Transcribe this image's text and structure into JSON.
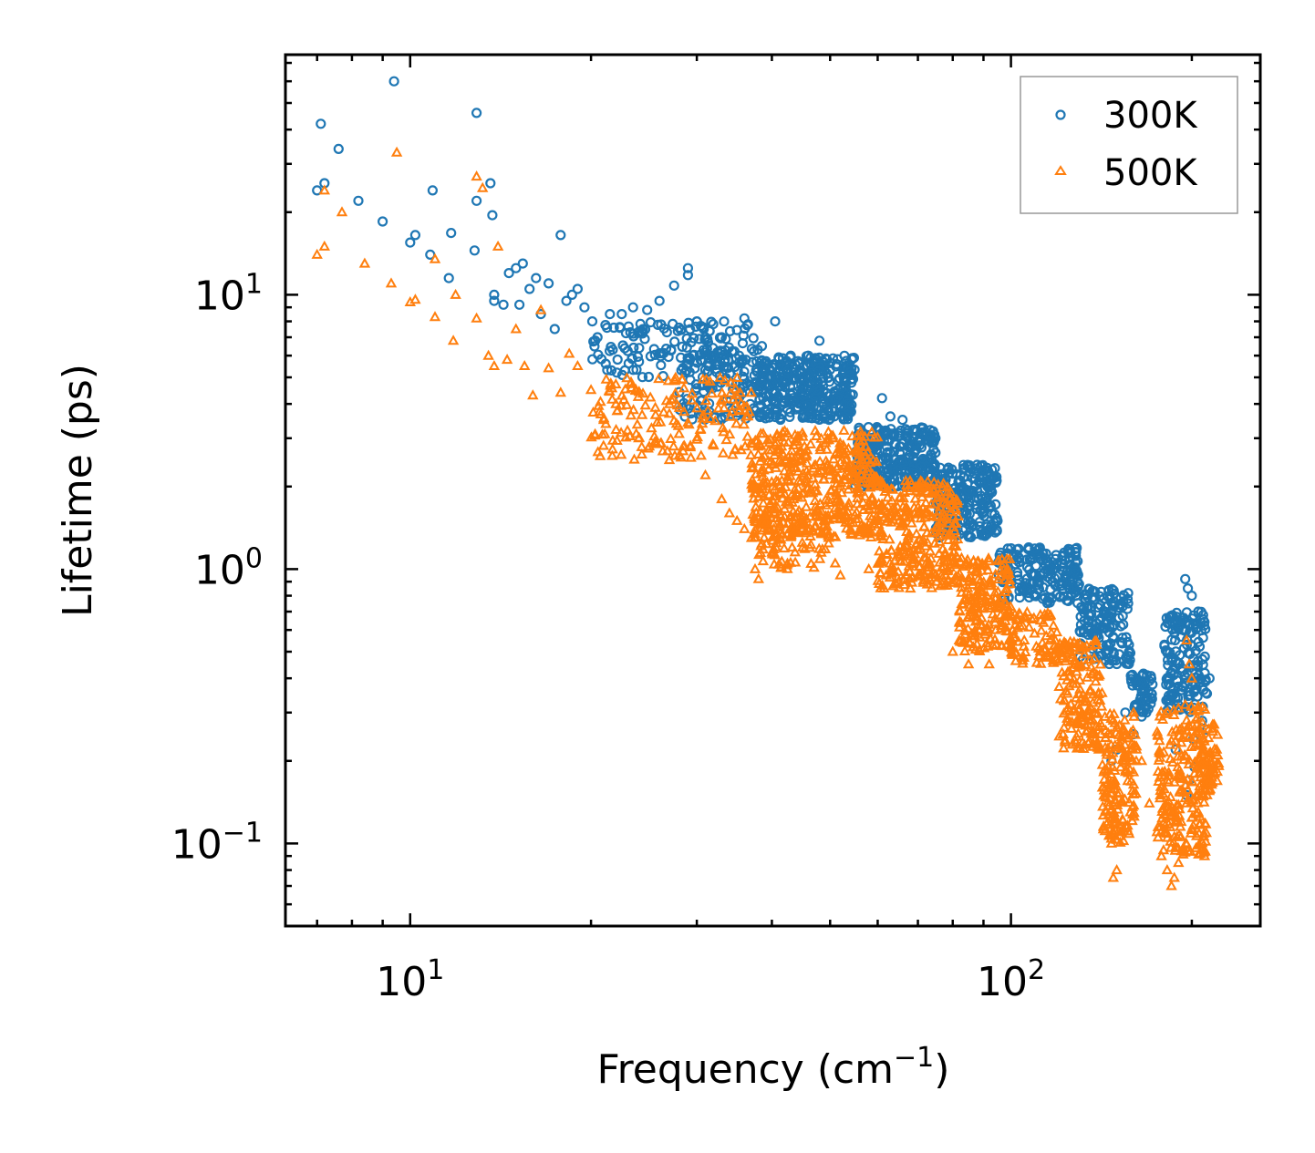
{
  "chart_data": {
    "type": "scatter",
    "title": "",
    "xlabel": "Frequency (cm",
    "xlabel_sup": "−1",
    "xlabel_end": ")",
    "ylabel": "Lifetime (ps)",
    "xscale": "log",
    "yscale": "log",
    "xlim": [
      6.2,
      260
    ],
    "ylim": [
      0.05,
      75
    ],
    "x_ticks": [
      {
        "value": 10,
        "base": "10",
        "exp": "1"
      },
      {
        "value": 100,
        "base": "10",
        "exp": "2"
      }
    ],
    "y_ticks": [
      {
        "value": 0.1,
        "base": "10",
        "exp": "−1"
      },
      {
        "value": 1,
        "base": "10",
        "exp": "0"
      },
      {
        "value": 10,
        "base": "10",
        "exp": "1"
      }
    ],
    "legend": {
      "position": "top-right"
    },
    "series": [
      {
        "name": "300K",
        "marker": "circle",
        "color": "#1f77b4",
        "points": [
          [
            7.0,
            24
          ],
          [
            7.1,
            42
          ],
          [
            7.2,
            25.5
          ],
          [
            7.6,
            34
          ],
          [
            8.2,
            22
          ],
          [
            9.0,
            18.5
          ],
          [
            9.4,
            60
          ],
          [
            10.0,
            15.5
          ],
          [
            10.2,
            16.5
          ],
          [
            10.8,
            14
          ],
          [
            10.9,
            24
          ],
          [
            11.6,
            11.5
          ],
          [
            11.7,
            16.8
          ],
          [
            12.8,
            14.5
          ],
          [
            12.9,
            22
          ],
          [
            12.9,
            46
          ],
          [
            13.6,
            25.5
          ],
          [
            13.7,
            19.5
          ],
          [
            13.8,
            10
          ],
          [
            13.8,
            9.5
          ],
          [
            14.3,
            9.2
          ],
          [
            14.6,
            12
          ],
          [
            15.0,
            12.5
          ],
          [
            15.2,
            9.2
          ],
          [
            15.4,
            13
          ],
          [
            15.8,
            10.5
          ],
          [
            16.2,
            11.5
          ],
          [
            16.5,
            8.5
          ],
          [
            17.0,
            11
          ],
          [
            17.4,
            7.5
          ],
          [
            17.8,
            16.5
          ],
          [
            18.2,
            9.5
          ],
          [
            18.6,
            10
          ],
          [
            19.0,
            10.5
          ],
          [
            19.5,
            9
          ],
          [
            20.1,
            8
          ],
          [
            20.5,
            7
          ],
          [
            21.5,
            8.5
          ],
          [
            22.5,
            8.5
          ],
          [
            23.5,
            9
          ],
          [
            24.8,
            8.8
          ],
          [
            26,
            9.5
          ],
          [
            27.5,
            10.8
          ],
          [
            29,
            12.5
          ],
          [
            29,
            11.8
          ],
          [
            30,
            8
          ],
          [
            31,
            7
          ],
          [
            33,
            7
          ],
          [
            36,
            8.2
          ],
          [
            36.5,
            7.8
          ],
          [
            38.5,
            6.5
          ],
          [
            40.5,
            8
          ],
          [
            43,
            6
          ],
          [
            46,
            6
          ],
          [
            48,
            6.8
          ],
          [
            61,
            4.2
          ],
          [
            63,
            3.6
          ],
          [
            66,
            3.5
          ],
          [
            95,
            1.5
          ],
          [
            107,
            1.2
          ],
          [
            108,
            1.1
          ],
          [
            115,
            1.0
          ],
          [
            122,
            0.9
          ],
          [
            185,
            0.35
          ],
          [
            192,
            0.65
          ],
          [
            195,
            0.92
          ],
          [
            197,
            0.85
          ],
          [
            200,
            0.8
          ],
          [
            205,
            0.7
          ],
          [
            214,
            0.4
          ],
          [
            188,
            0.22
          ],
          [
            196,
            0.15
          ],
          [
            198,
            0.17
          ],
          [
            201,
            0.24
          ],
          [
            202,
            0.19
          ],
          [
            208,
            0.28
          ],
          [
            212,
            0.26
          ],
          [
            160,
            0.25
          ],
          [
            165,
            0.29
          ],
          [
            168,
            0.3
          ],
          [
            172,
            0.38
          ],
          [
            147,
            0.2
          ],
          [
            150,
            0.22
          ],
          [
            155,
            0.3
          ]
        ],
        "bands": [
          [
            20,
            38,
            5.0,
            8.0,
            140
          ],
          [
            28,
            38,
            3.5,
            6.5,
            110
          ],
          [
            38,
            55,
            3.5,
            6.0,
            360
          ],
          [
            55,
            75,
            2.0,
            3.3,
            300
          ],
          [
            75,
            95,
            1.3,
            2.4,
            230
          ],
          [
            95,
            130,
            0.75,
            1.2,
            180
          ],
          [
            130,
            158,
            0.45,
            0.85,
            150
          ],
          [
            158,
            172,
            0.3,
            0.42,
            50
          ],
          [
            180,
            212,
            0.3,
            0.7,
            160
          ]
        ]
      },
      {
        "name": "500K",
        "marker": "triangle",
        "color": "#ff7f0e",
        "points": [
          [
            7.0,
            14
          ],
          [
            7.2,
            15
          ],
          [
            7.2,
            24
          ],
          [
            7.7,
            20
          ],
          [
            8.4,
            13
          ],
          [
            9.3,
            11
          ],
          [
            9.5,
            33
          ],
          [
            10.0,
            9.4
          ],
          [
            10.2,
            9.6
          ],
          [
            11.0,
            8.3
          ],
          [
            11.0,
            13.5
          ],
          [
            11.8,
            6.8
          ],
          [
            11.9,
            10
          ],
          [
            12.9,
            8.2
          ],
          [
            12.9,
            27
          ],
          [
            13.2,
            24.5
          ],
          [
            13.5,
            6
          ],
          [
            13.8,
            5.5
          ],
          [
            14.0,
            15
          ],
          [
            14.5,
            5.8
          ],
          [
            15.0,
            7.5
          ],
          [
            15.5,
            5.5
          ],
          [
            16.0,
            4.3
          ],
          [
            16.5,
            8.8
          ],
          [
            17.0,
            5.4
          ],
          [
            17.8,
            4.4
          ],
          [
            18.4,
            6.1
          ],
          [
            19.0,
            5.5
          ],
          [
            20.0,
            4.5
          ],
          [
            21.0,
            3.5
          ],
          [
            22.0,
            4.0
          ],
          [
            23.0,
            3.2
          ],
          [
            24.0,
            3.0
          ],
          [
            25.0,
            2.8
          ],
          [
            27.0,
            2.5
          ],
          [
            28.5,
            2.8
          ],
          [
            31,
            2.2
          ],
          [
            33,
            1.8
          ],
          [
            34,
            1.6
          ],
          [
            35,
            1.5
          ],
          [
            36,
            1.4
          ],
          [
            37,
            1.3
          ],
          [
            37.5,
            1.0
          ],
          [
            38,
            0.92
          ],
          [
            40,
            1.15
          ],
          [
            45,
            1.2
          ],
          [
            51,
            1.05
          ],
          [
            52,
            0.95
          ],
          [
            58,
            1.0
          ],
          [
            62,
            0.95
          ],
          [
            65,
            0.9
          ],
          [
            68,
            0.85
          ],
          [
            80,
            0.5
          ],
          [
            82,
            0.55
          ],
          [
            85,
            0.45
          ],
          [
            92,
            0.45
          ],
          [
            100,
            0.55
          ],
          [
            112,
            0.65
          ],
          [
            130,
            0.35
          ],
          [
            135,
            0.28
          ],
          [
            140,
            0.22
          ],
          [
            142,
            0.16
          ],
          [
            145,
            0.12
          ],
          [
            147,
            0.1
          ],
          [
            148,
            0.075
          ],
          [
            150,
            0.08
          ],
          [
            152,
            0.11
          ],
          [
            155,
            0.2
          ],
          [
            158,
            0.13
          ],
          [
            160,
            0.3
          ],
          [
            165,
            0.2
          ],
          [
            170,
            0.14
          ],
          [
            175,
            0.11
          ],
          [
            178,
            0.09
          ],
          [
            182,
            0.08
          ],
          [
            185,
            0.07
          ],
          [
            187,
            0.075
          ],
          [
            190,
            0.085
          ],
          [
            192,
            0.12
          ],
          [
            195,
            0.32
          ],
          [
            196,
            0.55
          ],
          [
            198,
            0.45
          ],
          [
            200,
            0.4
          ],
          [
            202,
            0.18
          ],
          [
            205,
            0.13
          ],
          [
            210,
            0.09
          ],
          [
            212,
            0.15
          ],
          [
            215,
            0.2
          ],
          [
            218,
            0.18
          ],
          [
            220,
            0.22
          ]
        ],
        "bands": [
          [
            20,
            37,
            2.5,
            5.0,
            170
          ],
          [
            37,
            60,
            1.3,
            3.2,
            480
          ],
          [
            38,
            50,
            1.0,
            1.6,
            80
          ],
          [
            60,
            82,
            0.85,
            2.1,
            320
          ],
          [
            82,
            100,
            0.5,
            1.1,
            200
          ],
          [
            100,
            120,
            0.45,
            0.7,
            80
          ],
          [
            120,
            142,
            0.22,
            0.55,
            170
          ],
          [
            142,
            162,
            0.1,
            0.3,
            160
          ],
          [
            175,
            212,
            0.09,
            0.32,
            220
          ],
          [
            205,
            222,
            0.15,
            0.28,
            60
          ]
        ]
      }
    ]
  }
}
